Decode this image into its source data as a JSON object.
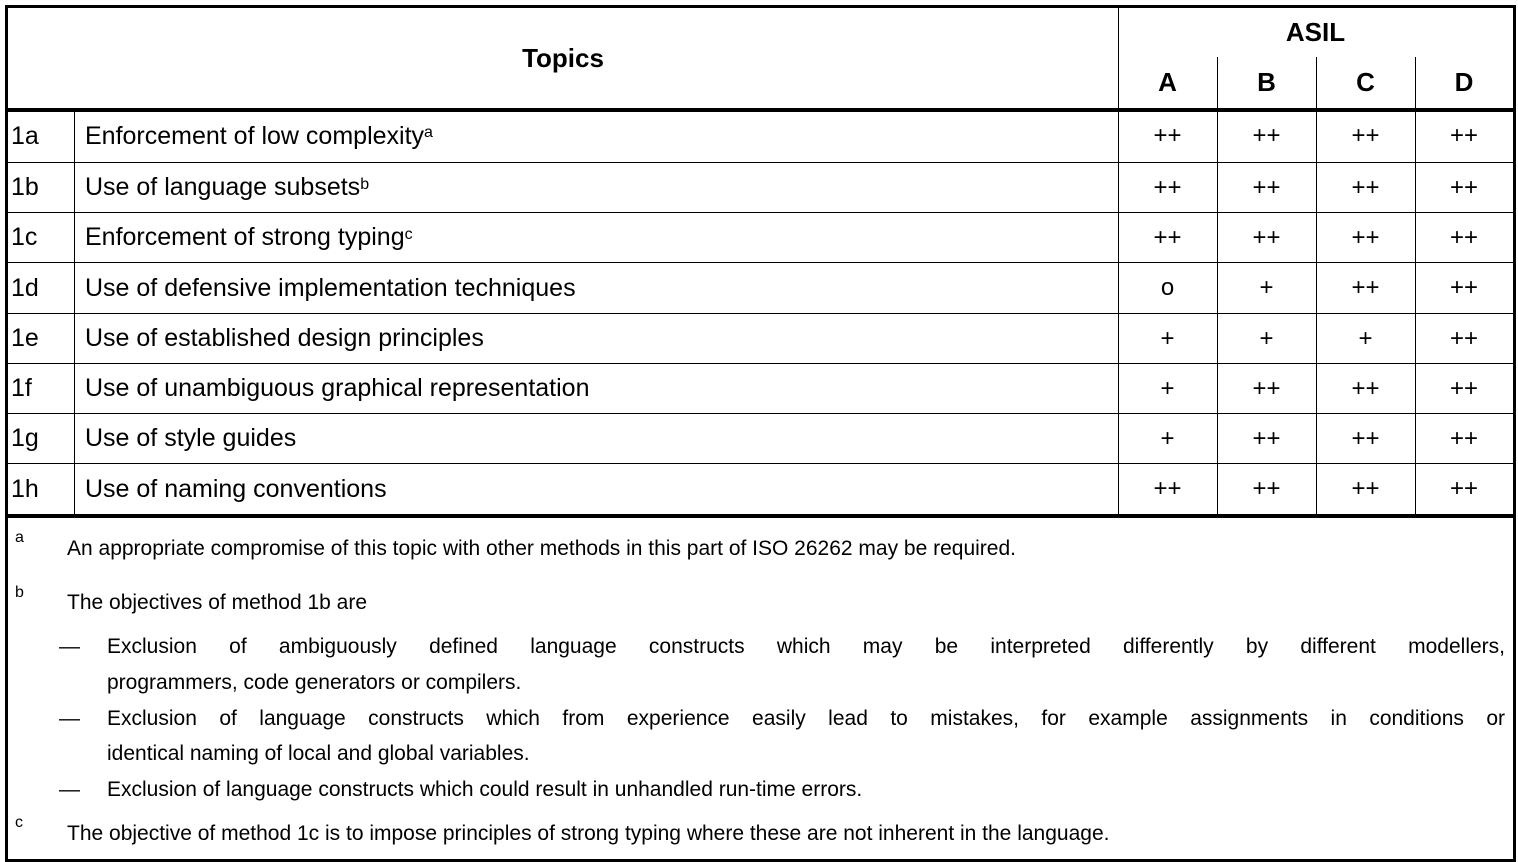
{
  "header": {
    "topics": "Topics",
    "asil": "ASIL",
    "levels": [
      "A",
      "B",
      "C",
      "D"
    ]
  },
  "rows": [
    {
      "id": "1a",
      "topic": "Enforcement of low complexity",
      "note": "a",
      "values": [
        "++",
        "++",
        "++",
        "++"
      ]
    },
    {
      "id": "1b",
      "topic": "Use of language subsets",
      "note": "b",
      "values": [
        "++",
        "++",
        "++",
        "++"
      ]
    },
    {
      "id": "1c",
      "topic": "Enforcement of strong typing",
      "note": "c",
      "values": [
        "++",
        "++",
        "++",
        "++"
      ]
    },
    {
      "id": "1d",
      "topic": "Use of defensive implementation techniques",
      "note": "",
      "values": [
        "o",
        "+",
        "++",
        "++"
      ]
    },
    {
      "id": "1e",
      "topic": "Use of established design principles",
      "note": "",
      "values": [
        "+",
        "+",
        "+",
        "++"
      ]
    },
    {
      "id": "1f",
      "topic": "Use of unambiguous graphical representation",
      "note": "",
      "values": [
        "+",
        "++",
        "++",
        "++"
      ]
    },
    {
      "id": "1g",
      "topic": "Use of style guides",
      "note": "",
      "values": [
        "+",
        "++",
        "++",
        "++"
      ]
    },
    {
      "id": "1h",
      "topic": "Use of naming conventions",
      "note": "",
      "values": [
        "++",
        "++",
        "++",
        "++"
      ]
    }
  ],
  "footnotes": {
    "a": {
      "mark": "a",
      "text": "An appropriate compromise of this topic with other methods in this part of ISO 26262 may be required."
    },
    "b": {
      "mark": "b",
      "text": "The objectives of method 1b are",
      "dash": "—",
      "items": [
        {
          "line1": "Exclusion of ambiguously defined language constructs which may be interpreted differently by different modellers,",
          "line2": "programmers, code generators or compilers."
        },
        {
          "line1": "Exclusion of language constructs which from experience easily lead to mistakes, for example assignments in conditions or",
          "line2": "identical naming of local and global variables."
        },
        {
          "line1": "Exclusion of language constructs which could result in unhandled run-time errors.",
          "line2": ""
        }
      ]
    },
    "c": {
      "mark": "c",
      "text": "The objective of method 1c is to impose principles of strong typing where these are not inherent in the language."
    }
  }
}
